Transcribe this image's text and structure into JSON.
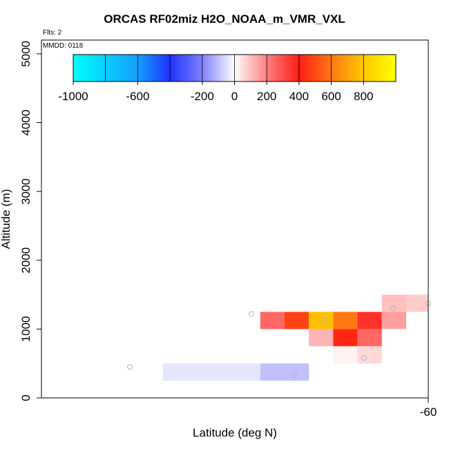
{
  "chart_data": {
    "type": "heatmap",
    "title": "ORCAS RF02miz H2O_NOAA_m_VMR_VXL",
    "flights_label": "Flts: 2",
    "date_label": "MMDD: 0118",
    "xlabel": "Latitude (deg N)",
    "ylabel": "Altitude (m)",
    "xlim": [
      -63.5,
      -60
    ],
    "ylim": [
      0,
      5200
    ],
    "x_ticks": [
      -60
    ],
    "x_tick_labels": [
      "-60"
    ],
    "y_ticks": [
      0,
      1000,
      2000,
      3000,
      4000,
      5000
    ],
    "y_tick_labels": [
      "0",
      "1000",
      "2000",
      "3000",
      "4000",
      "5000"
    ],
    "colorbar": {
      "range": [
        -1000,
        1000
      ],
      "ticks": [
        -1000,
        -600,
        -200,
        0,
        200,
        400,
        600,
        800
      ],
      "tick_labels": [
        "-1000",
        "-600",
        "-200",
        "0",
        "200",
        "400",
        "600",
        "800"
      ],
      "stops": [
        {
          "v": -1000,
          "c": "#00ffff"
        },
        {
          "v": -600,
          "c": "#14a0ff"
        },
        {
          "v": -400,
          "c": "#1e32ff"
        },
        {
          "v": -200,
          "c": "#8080ff"
        },
        {
          "v": 0,
          "c": "#ffffff"
        },
        {
          "v": 200,
          "c": "#ff8080"
        },
        {
          "v": 400,
          "c": "#ff1e14"
        },
        {
          "v": 600,
          "c": "#ff7814"
        },
        {
          "v": 800,
          "c": "#ffc800"
        },
        {
          "v": 1000,
          "c": "#ffff00"
        }
      ]
    },
    "cells": [
      {
        "lat": -62.4,
        "lat2": -61.52,
        "alt": 250,
        "alt2": 500,
        "value": -40
      },
      {
        "lat": -61.52,
        "lat2": -61.08,
        "alt": 250,
        "alt2": 500,
        "value": -100
      },
      {
        "lat": -61.52,
        "lat2": -61.3,
        "alt": 1000,
        "alt2": 1250,
        "value": 250
      },
      {
        "lat": -61.3,
        "lat2": -61.08,
        "alt": 1000,
        "alt2": 1250,
        "value": 480
      },
      {
        "lat": -61.08,
        "lat2": -60.86,
        "alt": 1000,
        "alt2": 1250,
        "value": 780
      },
      {
        "lat": -60.86,
        "lat2": -60.64,
        "alt": 1000,
        "alt2": 1250,
        "value": 600
      },
      {
        "lat": -60.64,
        "lat2": -60.42,
        "alt": 1000,
        "alt2": 1250,
        "value": 360
      },
      {
        "lat": -60.42,
        "lat2": -60.2,
        "alt": 1000,
        "alt2": 1250,
        "value": 150
      },
      {
        "lat": -61.08,
        "lat2": -60.86,
        "alt": 750,
        "alt2": 1000,
        "value": 120
      },
      {
        "lat": -60.86,
        "lat2": -60.64,
        "alt": 750,
        "alt2": 1000,
        "value": 420
      },
      {
        "lat": -60.64,
        "lat2": -60.42,
        "alt": 750,
        "alt2": 1000,
        "value": 250
      },
      {
        "lat": -60.86,
        "lat2": -60.64,
        "alt": 500,
        "alt2": 750,
        "value": 20
      },
      {
        "lat": -60.64,
        "lat2": -60.42,
        "alt": 500,
        "alt2": 750,
        "value": 60
      },
      {
        "lat": -60.42,
        "lat2": -60.2,
        "alt": 1250,
        "alt2": 1500,
        "value": 100
      },
      {
        "lat": -60.2,
        "lat2": -59.98,
        "alt": 1250,
        "alt2": 1500,
        "value": 80
      }
    ],
    "points": [
      {
        "lat": -62.7,
        "alt": 450
      },
      {
        "lat": -61.6,
        "alt": 1220
      },
      {
        "lat": -60.94,
        "alt": 1140
      },
      {
        "lat": -61.21,
        "alt": 330
      },
      {
        "lat": -60.58,
        "alt": 580
      },
      {
        "lat": -60.32,
        "alt": 1300
      },
      {
        "lat": -60.0,
        "alt": 1370
      }
    ]
  }
}
